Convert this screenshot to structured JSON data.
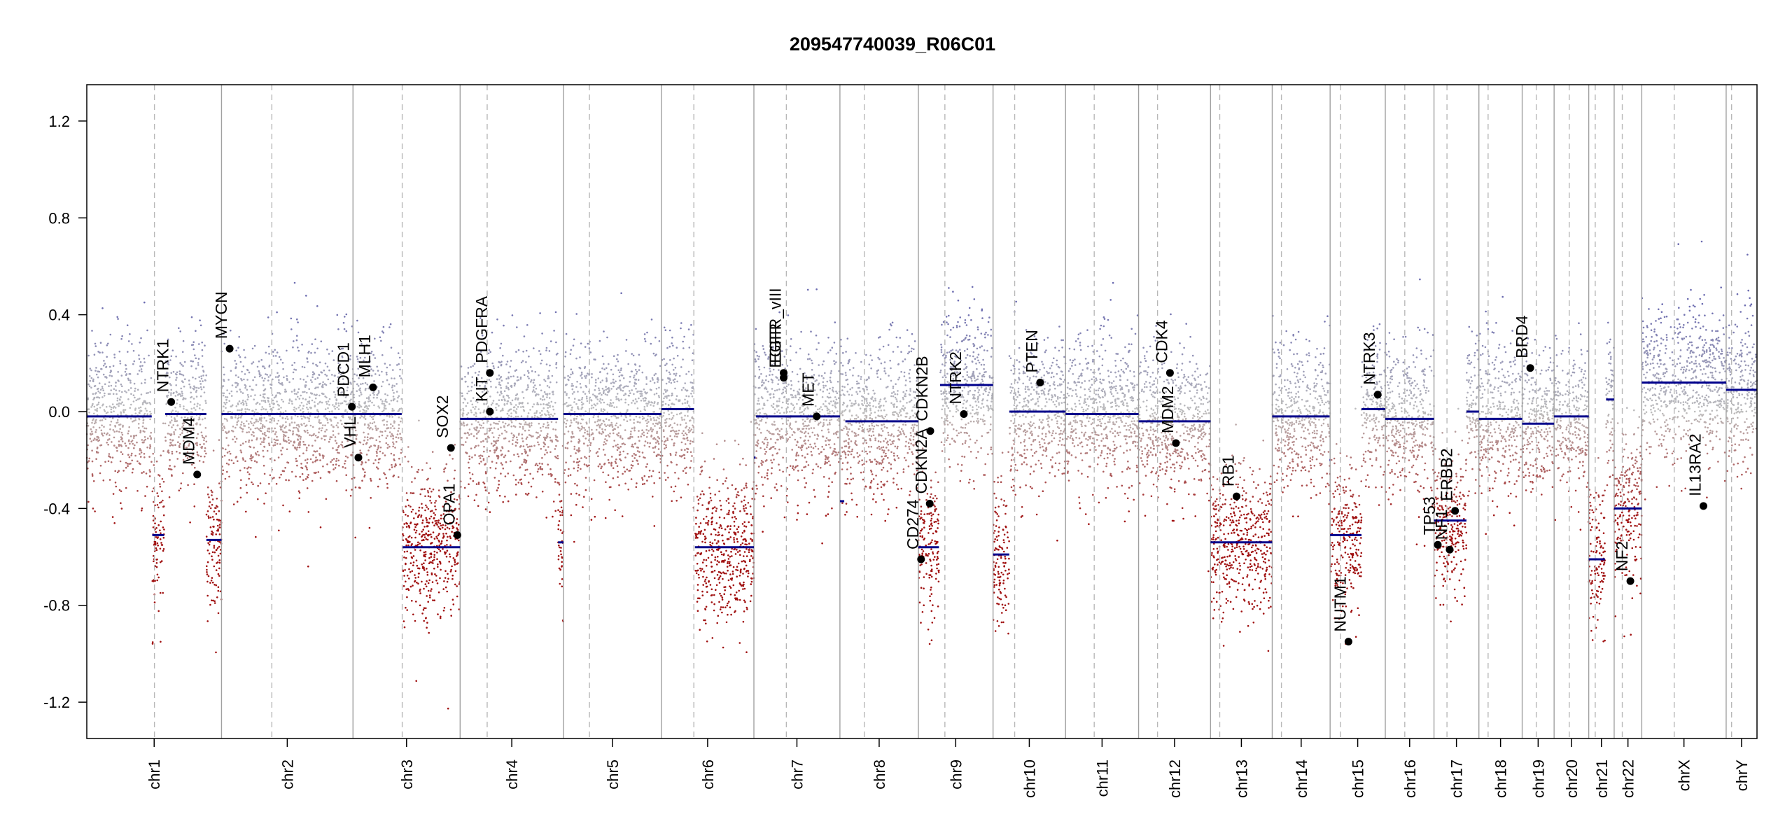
{
  "chart_data": {
    "type": "scatter",
    "title": "209547740039_R06C01",
    "xlabel": "",
    "ylabel": "",
    "ylim": [
      -1.35,
      1.35
    ],
    "yticks": [
      -1.2,
      -0.8,
      -0.4,
      0.0,
      0.4,
      0.8,
      1.2
    ],
    "ytick_labels": [
      "-1.2",
      "-0.8",
      "-0.4",
      "0.0",
      "0.4",
      "0.8",
      "1.2"
    ],
    "x_axis_unit": "Mb",
    "grid": false,
    "colors": {
      "gain": "#6b6bb0",
      "loss": "#a01010",
      "neutral": "#bdbdbd",
      "segment": "#00008b",
      "boundary": "#a0a0a0",
      "centromere": "#b8b8b8",
      "gene_point": "#000000"
    },
    "chromosomes": [
      {
        "name": "chr1",
        "length": 249,
        "centromere": 125
      },
      {
        "name": "chr2",
        "length": 243,
        "centromere": 93
      },
      {
        "name": "chr3",
        "length": 198,
        "centromere": 91
      },
      {
        "name": "chr4",
        "length": 191,
        "centromere": 50
      },
      {
        "name": "chr5",
        "length": 181,
        "centromere": 48
      },
      {
        "name": "chr6",
        "length": 171,
        "centromere": 60
      },
      {
        "name": "chr7",
        "length": 159,
        "centromere": 60
      },
      {
        "name": "chr8",
        "length": 145,
        "centromere": 45
      },
      {
        "name": "chr9",
        "length": 138,
        "centromere": 49
      },
      {
        "name": "chr10",
        "length": 134,
        "centromere": 40
      },
      {
        "name": "chr11",
        "length": 135,
        "centromere": 53
      },
      {
        "name": "chr12",
        "length": 133,
        "centromere": 35
      },
      {
        "name": "chr13",
        "length": 114,
        "centromere": 17
      },
      {
        "name": "chr14",
        "length": 107,
        "centromere": 17
      },
      {
        "name": "chr15",
        "length": 102,
        "centromere": 19
      },
      {
        "name": "chr16",
        "length": 90,
        "centromere": 36
      },
      {
        "name": "chr17",
        "length": 83,
        "centromere": 24
      },
      {
        "name": "chr18",
        "length": 80,
        "centromere": 17
      },
      {
        "name": "chr19",
        "length": 59,
        "centromere": 26
      },
      {
        "name": "chr20",
        "length": 64,
        "centromere": 28
      },
      {
        "name": "chr21",
        "length": 47,
        "centromere": 12
      },
      {
        "name": "chr22",
        "length": 51,
        "centromere": 15
      },
      {
        "name": "chrX",
        "length": 156,
        "centromere": 60
      },
      {
        "name": "chrY",
        "length": 57,
        "centromere": 10
      }
    ],
    "segments": [
      {
        "chr": "chr1",
        "start": 0,
        "end": 120,
        "value": -0.02
      },
      {
        "chr": "chr1",
        "start": 121,
        "end": 143,
        "value": -0.51
      },
      {
        "chr": "chr1",
        "start": 145,
        "end": 221,
        "value": -0.01
      },
      {
        "chr": "chr1",
        "start": 221,
        "end": 249,
        "value": -0.53
      },
      {
        "chr": "chr2",
        "start": 0,
        "end": 243,
        "value": -0.01
      },
      {
        "chr": "chr3",
        "start": 0,
        "end": 90,
        "value": -0.01
      },
      {
        "chr": "chr3",
        "start": 92,
        "end": 198,
        "value": -0.56
      },
      {
        "chr": "chr4",
        "start": 0,
        "end": 181,
        "value": -0.03
      },
      {
        "chr": "chr4",
        "start": 181,
        "end": 191,
        "value": -0.54
      },
      {
        "chr": "chr5",
        "start": 0,
        "end": 181,
        "value": -0.01
      },
      {
        "chr": "chr6",
        "start": 0,
        "end": 60,
        "value": 0.01
      },
      {
        "chr": "chr6",
        "start": 62,
        "end": 171,
        "value": -0.56
      },
      {
        "chr": "chr7",
        "start": 0,
        "end": 3,
        "value": -0.19
      },
      {
        "chr": "chr7",
        "start": 4,
        "end": 159,
        "value": -0.02
      },
      {
        "chr": "chr8",
        "start": 0,
        "end": 8,
        "value": -0.37
      },
      {
        "chr": "chr8",
        "start": 10,
        "end": 145,
        "value": -0.04
      },
      {
        "chr": "chr9",
        "start": 0,
        "end": 38,
        "value": -0.56
      },
      {
        "chr": "chr9",
        "start": 40,
        "end": 138,
        "value": 0.11
      },
      {
        "chr": "chr10",
        "start": 0,
        "end": 30,
        "value": -0.59
      },
      {
        "chr": "chr10",
        "start": 30,
        "end": 134,
        "value": 0.0
      },
      {
        "chr": "chr11",
        "start": 0,
        "end": 135,
        "value": -0.01
      },
      {
        "chr": "chr12",
        "start": 0,
        "end": 133,
        "value": -0.04
      },
      {
        "chr": "chr13",
        "start": 0,
        "end": 114,
        "value": -0.54
      },
      {
        "chr": "chr14",
        "start": 0,
        "end": 106,
        "value": -0.02
      },
      {
        "chr": "chr14",
        "start": 106,
        "end": 107,
        "value": -0.2
      },
      {
        "chr": "chr15",
        "start": 0,
        "end": 58,
        "value": -0.51
      },
      {
        "chr": "chr15",
        "start": 58,
        "end": 102,
        "value": 0.01
      },
      {
        "chr": "chr16",
        "start": 0,
        "end": 90,
        "value": -0.03
      },
      {
        "chr": "chr17",
        "start": 0,
        "end": 60,
        "value": -0.45
      },
      {
        "chr": "chr17",
        "start": 60,
        "end": 83,
        "value": 0.0
      },
      {
        "chr": "chr17",
        "start": 0,
        "end": 0,
        "value": 0.0
      },
      {
        "chr": "chr18",
        "start": 0,
        "end": 80,
        "value": -0.03
      },
      {
        "chr": "chr19",
        "start": 0,
        "end": 59,
        "value": -0.05
      },
      {
        "chr": "chr20",
        "start": 0,
        "end": 64,
        "value": -0.02
      },
      {
        "chr": "chr21",
        "start": 0,
        "end": 30,
        "value": -0.61
      },
      {
        "chr": "chr21",
        "start": 32,
        "end": 47,
        "value": 0.05
      },
      {
        "chr": "chr22",
        "start": 0,
        "end": 51,
        "value": -0.4
      },
      {
        "chrX": "",
        "chr": "chrX",
        "start": 0,
        "end": 156,
        "value": 0.12
      },
      {
        "chr": "chrY",
        "start": 0,
        "end": 57,
        "value": 0.09
      }
    ],
    "noise_profile": [
      {
        "chr": "chr1",
        "start": 0,
        "end": 120,
        "mean": -0.02
      },
      {
        "chr": "chr1",
        "start": 121,
        "end": 143,
        "mean": -0.51
      },
      {
        "chr": "chr1",
        "start": 145,
        "end": 221,
        "mean": -0.01
      },
      {
        "chr": "chr1",
        "start": 221,
        "end": 249,
        "mean": -0.53
      },
      {
        "chr": "chr2",
        "start": 0,
        "end": 243,
        "mean": -0.01
      },
      {
        "chr": "chr3",
        "start": 0,
        "end": 90,
        "mean": -0.01
      },
      {
        "chr": "chr3",
        "start": 92,
        "end": 198,
        "mean": -0.56
      },
      {
        "chr": "chr4",
        "start": 0,
        "end": 181,
        "mean": -0.03
      },
      {
        "chr": "chr4",
        "start": 181,
        "end": 191,
        "mean": -0.54
      },
      {
        "chr": "chr5",
        "start": 0,
        "end": 181,
        "mean": -0.01
      },
      {
        "chr": "chr6",
        "start": 0,
        "end": 60,
        "mean": 0.01
      },
      {
        "chr": "chr6",
        "start": 62,
        "end": 171,
        "mean": -0.56
      },
      {
        "chr": "chr7",
        "start": 0,
        "end": 159,
        "mean": -0.02
      },
      {
        "chr": "chr8",
        "start": 0,
        "end": 145,
        "mean": -0.04
      },
      {
        "chr": "chr9",
        "start": 0,
        "end": 38,
        "mean": -0.56
      },
      {
        "chr": "chr9",
        "start": 40,
        "end": 138,
        "mean": 0.11
      },
      {
        "chr": "chr10",
        "start": 0,
        "end": 30,
        "mean": -0.59
      },
      {
        "chr": "chr10",
        "start": 30,
        "end": 134,
        "mean": 0.0
      },
      {
        "chr": "chr11",
        "start": 0,
        "end": 135,
        "mean": -0.01
      },
      {
        "chr": "chr12",
        "start": 0,
        "end": 133,
        "mean": -0.04
      },
      {
        "chr": "chr13",
        "start": 0,
        "end": 114,
        "mean": -0.54
      },
      {
        "chr": "chr14",
        "start": 0,
        "end": 107,
        "mean": -0.02
      },
      {
        "chr": "chr15",
        "start": 0,
        "end": 58,
        "mean": -0.51
      },
      {
        "chr": "chr15",
        "start": 58,
        "end": 102,
        "mean": 0.01
      },
      {
        "chr": "chr16",
        "start": 0,
        "end": 90,
        "mean": -0.03
      },
      {
        "chr": "chr17",
        "start": 0,
        "end": 60,
        "mean": -0.45
      },
      {
        "chr": "chr17",
        "start": 60,
        "end": 83,
        "mean": 0.0
      },
      {
        "chr": "chr18",
        "start": 0,
        "end": 80,
        "mean": -0.03
      },
      {
        "chr": "chr19",
        "start": 0,
        "end": 59,
        "mean": -0.05
      },
      {
        "chr": "chr20",
        "start": 0,
        "end": 64,
        "mean": -0.02
      },
      {
        "chr": "chr21",
        "start": 0,
        "end": 30,
        "mean": -0.61
      },
      {
        "chr": "chr21",
        "start": 32,
        "end": 47,
        "mean": 0.05
      },
      {
        "chr": "chr22",
        "start": 0,
        "end": 51,
        "mean": -0.4
      },
      {
        "chr": "chrX",
        "start": 0,
        "end": 156,
        "mean": 0.12
      },
      {
        "chr": "chrY",
        "start": 0,
        "end": 57,
        "mean": 0.09
      }
    ],
    "genes": [
      {
        "name": "NTRK1",
        "chr": "chr1",
        "pos": 156,
        "value": 0.04
      },
      {
        "name": "MDM4",
        "chr": "chr1",
        "pos": 204,
        "value": -0.26
      },
      {
        "name": "MYCN",
        "chr": "chr2",
        "pos": 15,
        "value": 0.26
      },
      {
        "name": "PDCD1",
        "chr": "chr2",
        "pos": 241,
        "value": 0.02
      },
      {
        "name": "MLH1",
        "chr": "chr3",
        "pos": 37,
        "value": 0.1
      },
      {
        "name": "VHL",
        "chr": "chr3",
        "pos": 10,
        "value": -0.19
      },
      {
        "name": "SOX2",
        "chr": "chr3",
        "pos": 181,
        "value": -0.15
      },
      {
        "name": "OPA1",
        "chr": "chr3",
        "pos": 193,
        "value": -0.51
      },
      {
        "name": "PDGFRA",
        "chr": "chr4",
        "pos": 55,
        "value": 0.16
      },
      {
        "name": "KIT",
        "chr": "chr4",
        "pos": 55,
        "value": 0.0
      },
      {
        "name": "EGFR_vIII",
        "chr": "chr7",
        "pos": 55,
        "value": 0.16
      },
      {
        "name": "EGFR",
        "chr": "chr7",
        "pos": 55,
        "value": 0.14
      },
      {
        "name": "MET",
        "chr": "chr7",
        "pos": 116,
        "value": -0.02
      },
      {
        "name": "CD274",
        "chr": "chr9",
        "pos": 5,
        "value": -0.61
      },
      {
        "name": "CDKN2A",
        "chr": "chr9",
        "pos": 21,
        "value": -0.38
      },
      {
        "name": "CDKN2B",
        "chr": "chr9",
        "pos": 22,
        "value": -0.08
      },
      {
        "name": "NTRK2",
        "chr": "chr9",
        "pos": 84,
        "value": -0.01
      },
      {
        "name": "PTEN",
        "chr": "chr10",
        "pos": 87,
        "value": 0.12
      },
      {
        "name": "CDK4",
        "chr": "chr12",
        "pos": 58,
        "value": 0.16
      },
      {
        "name": "MDM2",
        "chr": "chr12",
        "pos": 69,
        "value": -0.13
      },
      {
        "name": "RB1",
        "chr": "chr13",
        "pos": 48,
        "value": -0.35
      },
      {
        "name": "NUTM1",
        "chr": "chr15",
        "pos": 34,
        "value": -0.95
      },
      {
        "name": "NTRK3",
        "chr": "chr15",
        "pos": 88,
        "value": 0.07
      },
      {
        "name": "TP53",
        "chr": "chr17",
        "pos": 7,
        "value": -0.55
      },
      {
        "name": "NF1",
        "chr": "chr17",
        "pos": 29,
        "value": -0.57
      },
      {
        "name": "ERBB2",
        "chr": "chr17",
        "pos": 39,
        "value": -0.41
      },
      {
        "name": "BRD4",
        "chr": "chr19",
        "pos": 15,
        "value": 0.18
      },
      {
        "name": "NF2",
        "chr": "chr22",
        "pos": 30,
        "value": -0.7
      },
      {
        "name": "IL13RA2",
        "chr": "chrX",
        "pos": 114,
        "value": -0.39
      }
    ]
  }
}
